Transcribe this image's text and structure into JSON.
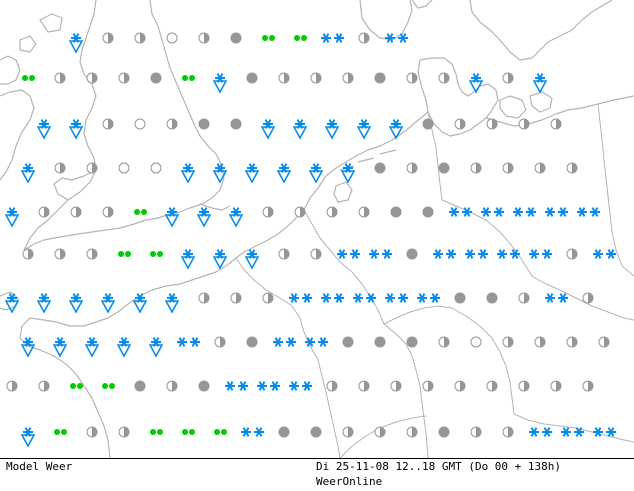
{
  "footer": {
    "model_label": "Model Weer",
    "timestamp": "Di 25-11-08 12..18 GMT (Do 00 + 138h)",
    "brand": "WeerOnline"
  },
  "colors": {
    "coast": "#b4b4b4",
    "green_precip": "#00cc00",
    "snow": "#0a8ce6",
    "dry": "#969696"
  },
  "symbol_legend": {
    "o": "clear",
    "h": "partly-cloudy",
    "c": "overcast",
    "d": "drizzle",
    "s": "showers",
    "S": "snow-showers",
    "n": "snow"
  },
  "weather_grid": [
    "0000dS0h0h0o0h0c0d0d0n0h0n0000000000",
    "0d0h0h0h0c0d0S0c0h0h0h0c0h0h0S0h0S00",
    "000S0S0h0o0h0c0c0S0S0S0S0S0c0h0h0h0h",
    "0S0h0h0o0o0S0S0S0S0S0S0c0h0c0h0h0h0h",
    "0S0h0h0h0d0S0S0S0h0h0h0h0c0c0n0n0n0n0n",
    "0h0h0h0d0d0S0S0S0h0h0n0n0c0n0n0n0n0h0n",
    "0S0S0S0S0S0S0h0h0h0n0n0n0n0n0c0c0h0n0h",
    "0S0S0S0S0S0n0h0c0n0n0c0c0c0h0o0h0h0h0h",
    "0h0h0d0d0c0h0c0n0n0n0h0h0h0h0h0h0h0h0h",
    "0S0d0h0h0d0d0d0n0c0c0h0h0h0c0h0h0n0n0n"
  ]
}
